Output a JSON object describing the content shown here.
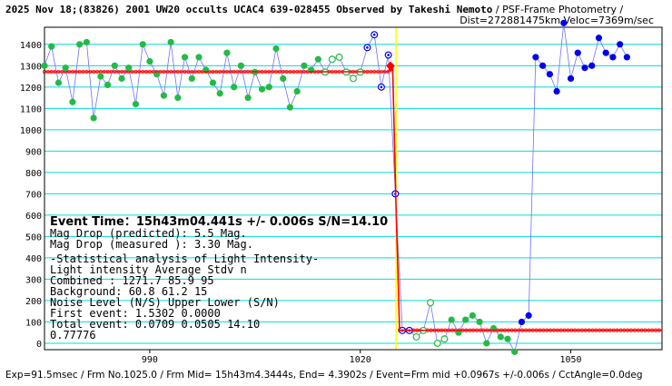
{
  "header": {
    "title_bold": "2025 Nov 18;(83826) 2001 UW20 occults UCAC4 639-028455 Observed by Takeshi Nemoto",
    "title_rest": " / PSF-Frame Photometry /",
    "subtitle": "Dist=272881475km Veloc=7369m/sec"
  },
  "footer": "Exp=91.5msec / Frm No.1025.0 / Frm Mid= 15h43m4.3444s,  End= 4.3902s / Event=Frm mid +0.0967s +/-0.006s / CctAngle=0.0deg",
  "info": {
    "event_time": "Event Time：15h43m04.441s  +/- 0.006s  S/N=14.10",
    "lines": [
      "Mag Drop (predicted):  5.5    Mag.",
      "Mag Drop (measured ):  3.30   Mag.",
      "-Statistical analysis of Light Intensity-",
      "Light intensity     Average    Stdv       n",
      "   Combined   :      1271.7      85.9      95",
      "   Background:         60.8      61.2      15",
      "Noise Level (N/S)   Upper      Lower     (S/N)",
      "   First event:      1.5302    0.0000",
      "   Total event:      0.0709    0.0505    14.10",
      "0.77776"
    ]
  },
  "colors": {
    "grid": "#00dede",
    "upper_level": "#ff0000",
    "lower_level": "#ff0000",
    "event_line": "#ffff00",
    "connector": "#7070ff",
    "green_points": "#22bb44",
    "blue_points": "#0000ee",
    "fit": "#ff0000"
  },
  "chart_data": {
    "type": "scatter",
    "xlim": [
      975,
      1063
    ],
    "ylim": [
      -30,
      1480
    ],
    "x_ticks": [
      990,
      1020,
      1050
    ],
    "y_ticks": [
      0,
      100,
      200,
      300,
      400,
      500,
      600,
      700,
      800,
      900,
      1000,
      1100,
      1200,
      1300,
      1400
    ],
    "grid": true,
    "levels": {
      "upper": 1271.7,
      "lower": 60.8
    },
    "event_frame": 1025.1,
    "points": [
      {
        "x": 975,
        "y": 1300,
        "marker": "filled",
        "color": "green"
      },
      {
        "x": 976,
        "y": 1390,
        "marker": "filled",
        "color": "green"
      },
      {
        "x": 977,
        "y": 1220,
        "marker": "filled",
        "color": "green"
      },
      {
        "x": 978,
        "y": 1290,
        "marker": "filled",
        "color": "green"
      },
      {
        "x": 979,
        "y": 1130,
        "marker": "filled",
        "color": "green"
      },
      {
        "x": 980,
        "y": 1400,
        "marker": "filled",
        "color": "green"
      },
      {
        "x": 981,
        "y": 1410,
        "marker": "filled",
        "color": "green"
      },
      {
        "x": 982,
        "y": 1055,
        "marker": "filled",
        "color": "green"
      },
      {
        "x": 983,
        "y": 1250,
        "marker": "filled",
        "color": "green"
      },
      {
        "x": 984,
        "y": 1210,
        "marker": "filled",
        "color": "green"
      },
      {
        "x": 985,
        "y": 1300,
        "marker": "filled",
        "color": "green"
      },
      {
        "x": 986,
        "y": 1240,
        "marker": "filled",
        "color": "green"
      },
      {
        "x": 987,
        "y": 1290,
        "marker": "filled",
        "color": "green"
      },
      {
        "x": 988,
        "y": 1120,
        "marker": "filled",
        "color": "green"
      },
      {
        "x": 989,
        "y": 1400,
        "marker": "filled",
        "color": "green"
      },
      {
        "x": 990,
        "y": 1320,
        "marker": "filled",
        "color": "green"
      },
      {
        "x": 991,
        "y": 1260,
        "marker": "filled",
        "color": "green"
      },
      {
        "x": 992,
        "y": 1160,
        "marker": "filled",
        "color": "green"
      },
      {
        "x": 993,
        "y": 1410,
        "marker": "filled",
        "color": "green"
      },
      {
        "x": 994,
        "y": 1150,
        "marker": "filled",
        "color": "green"
      },
      {
        "x": 995,
        "y": 1340,
        "marker": "filled",
        "color": "green"
      },
      {
        "x": 996,
        "y": 1240,
        "marker": "filled",
        "color": "green"
      },
      {
        "x": 997,
        "y": 1340,
        "marker": "filled",
        "color": "green"
      },
      {
        "x": 998,
        "y": 1280,
        "marker": "filled",
        "color": "green"
      },
      {
        "x": 999,
        "y": 1220,
        "marker": "filled",
        "color": "green"
      },
      {
        "x": 1000,
        "y": 1170,
        "marker": "filled",
        "color": "green"
      },
      {
        "x": 1001,
        "y": 1360,
        "marker": "filled",
        "color": "green"
      },
      {
        "x": 1002,
        "y": 1200,
        "marker": "filled",
        "color": "green"
      },
      {
        "x": 1003,
        "y": 1300,
        "marker": "filled",
        "color": "green"
      },
      {
        "x": 1004,
        "y": 1150,
        "marker": "filled",
        "color": "green"
      },
      {
        "x": 1005,
        "y": 1270,
        "marker": "filled",
        "color": "green"
      },
      {
        "x": 1006,
        "y": 1190,
        "marker": "filled",
        "color": "green"
      },
      {
        "x": 1007,
        "y": 1200,
        "marker": "filled",
        "color": "green"
      },
      {
        "x": 1008,
        "y": 1380,
        "marker": "filled",
        "color": "green"
      },
      {
        "x": 1009,
        "y": 1240,
        "marker": "filled",
        "color": "green"
      },
      {
        "x": 1010,
        "y": 1105,
        "marker": "filled",
        "color": "green"
      },
      {
        "x": 1011,
        "y": 1180,
        "marker": "filled",
        "color": "green"
      },
      {
        "x": 1012,
        "y": 1300,
        "marker": "filled",
        "color": "green"
      },
      {
        "x": 1013,
        "y": 1280,
        "marker": "filled",
        "color": "green"
      },
      {
        "x": 1014,
        "y": 1330,
        "marker": "filled",
        "color": "green"
      },
      {
        "x": 1015,
        "y": 1270,
        "marker": "open",
        "color": "green"
      },
      {
        "x": 1016,
        "y": 1330,
        "marker": "open",
        "color": "green"
      },
      {
        "x": 1017,
        "y": 1340,
        "marker": "open",
        "color": "green"
      },
      {
        "x": 1018,
        "y": 1270,
        "marker": "open",
        "color": "green"
      },
      {
        "x": 1019,
        "y": 1240,
        "marker": "open",
        "color": "green"
      },
      {
        "x": 1020,
        "y": 1270,
        "marker": "open",
        "color": "green"
      },
      {
        "x": 1021,
        "y": 1385,
        "marker": "cross",
        "color": "blue"
      },
      {
        "x": 1022,
        "y": 1445,
        "marker": "cross",
        "color": "blue"
      },
      {
        "x": 1023,
        "y": 1200,
        "marker": "cross",
        "color": "blue"
      },
      {
        "x": 1024,
        "y": 1350,
        "marker": "cross",
        "color": "blue"
      },
      {
        "x": 1025,
        "y": 700,
        "marker": "cross",
        "color": "blue"
      },
      {
        "x": 1026,
        "y": 60,
        "marker": "cross",
        "color": "blue"
      },
      {
        "x": 1027,
        "y": 60,
        "marker": "cross",
        "color": "blue"
      },
      {
        "x": 1028,
        "y": 30,
        "marker": "open",
        "color": "green"
      },
      {
        "x": 1029,
        "y": 60,
        "marker": "open",
        "color": "green"
      },
      {
        "x": 1030,
        "y": 190,
        "marker": "open",
        "color": "green"
      },
      {
        "x": 1031,
        "y": 0,
        "marker": "open",
        "color": "green"
      },
      {
        "x": 1032,
        "y": 20,
        "marker": "open",
        "color": "green"
      },
      {
        "x": 1033,
        "y": 110,
        "marker": "filled",
        "color": "green"
      },
      {
        "x": 1034,
        "y": 50,
        "marker": "filled",
        "color": "green"
      },
      {
        "x": 1035,
        "y": 110,
        "marker": "filled",
        "color": "green"
      },
      {
        "x": 1036,
        "y": 130,
        "marker": "filled",
        "color": "green"
      },
      {
        "x": 1037,
        "y": 100,
        "marker": "filled",
        "color": "green"
      },
      {
        "x": 1038,
        "y": 0,
        "marker": "filled",
        "color": "green"
      },
      {
        "x": 1039,
        "y": 70,
        "marker": "filled",
        "color": "green"
      },
      {
        "x": 1040,
        "y": 30,
        "marker": "filled",
        "color": "green"
      },
      {
        "x": 1041,
        "y": 20,
        "marker": "filled",
        "color": "green"
      },
      {
        "x": 1042,
        "y": -40,
        "marker": "filled",
        "color": "green"
      },
      {
        "x": 1043,
        "y": 100,
        "marker": "filled",
        "color": "blue"
      },
      {
        "x": 1044,
        "y": 130,
        "marker": "filled",
        "color": "blue"
      },
      {
        "x": 1045,
        "y": 1340,
        "marker": "filled",
        "color": "blue"
      },
      {
        "x": 1046,
        "y": 1300,
        "marker": "filled",
        "color": "blue"
      },
      {
        "x": 1047,
        "y": 1260,
        "marker": "filled",
        "color": "blue"
      },
      {
        "x": 1048,
        "y": 1180,
        "marker": "filled",
        "color": "blue"
      },
      {
        "x": 1049,
        "y": 1500,
        "marker": "filled",
        "color": "blue"
      },
      {
        "x": 1050,
        "y": 1240,
        "marker": "filled",
        "color": "blue"
      },
      {
        "x": 1051,
        "y": 1360,
        "marker": "filled",
        "color": "blue"
      },
      {
        "x": 1052,
        "y": 1290,
        "marker": "filled",
        "color": "blue"
      },
      {
        "x": 1053,
        "y": 1300,
        "marker": "filled",
        "color": "blue"
      },
      {
        "x": 1054,
        "y": 1430,
        "marker": "filled",
        "color": "blue"
      },
      {
        "x": 1055,
        "y": 1360,
        "marker": "filled",
        "color": "blue"
      },
      {
        "x": 1056,
        "y": 1340,
        "marker": "filled",
        "color": "blue"
      },
      {
        "x": 1057,
        "y": 1400,
        "marker": "filled",
        "color": "blue"
      },
      {
        "x": 1058,
        "y": 1340,
        "marker": "filled",
        "color": "blue"
      }
    ],
    "fit_curve": [
      {
        "x": 975,
        "y": 1271.7
      },
      {
        "x": 1024,
        "y": 1271.7
      },
      {
        "x": 1024.6,
        "y": 1310
      },
      {
        "x": 1025.0,
        "y": 760
      },
      {
        "x": 1025.1,
        "y": 640
      },
      {
        "x": 1025.6,
        "y": 60.8
      },
      {
        "x": 1063,
        "y": 60.8
      }
    ]
  }
}
